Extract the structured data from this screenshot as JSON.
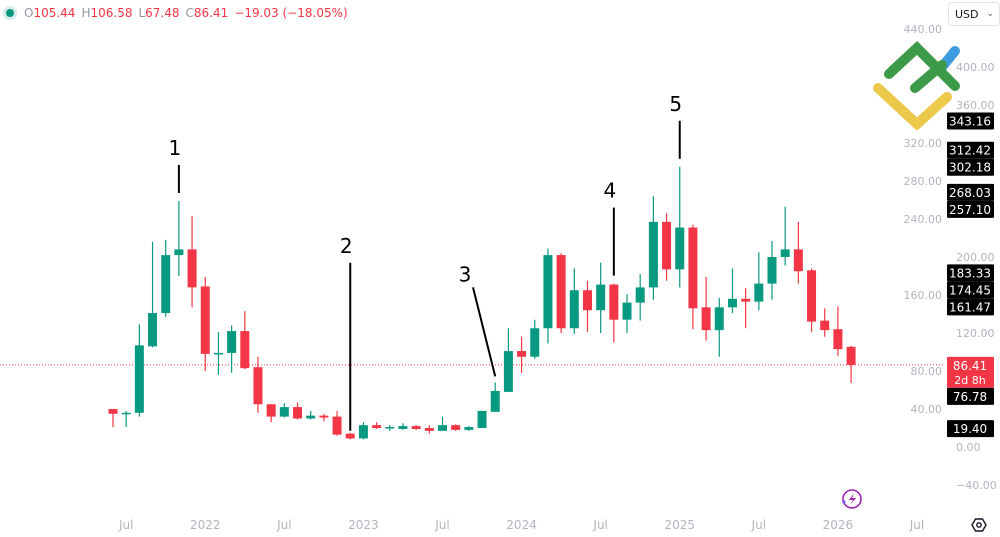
{
  "legend": {
    "o_label": "O",
    "o": "105.44",
    "h_label": "H",
    "h": "106.58",
    "l_label": "L",
    "l": "67.48",
    "c_label": "C",
    "c": "86.41",
    "change": "−19.03 (−18.05%)"
  },
  "currency": {
    "value": "USD"
  },
  "colors": {
    "up": "#089981",
    "down": "#f23645",
    "label_bg": "#000000",
    "last_price_bg": "#f23645"
  },
  "icons": {
    "logo": "litefinance-logo",
    "assistant": "lightning-sparkle-icon",
    "settings": "gear-hex-icon",
    "currency_dropdown": "chevron-down-icon"
  },
  "chart_data": {
    "type": "candlestick",
    "interval": "monthly",
    "ylim": [
      -40,
      440
    ],
    "y_ticks": [
      "440.00",
      "400.00",
      "360.00",
      "320.00",
      "280.00",
      "240.00",
      "200.00",
      "160.00",
      "120.00",
      "80.00",
      "40.00",
      "0.00",
      "−40.00"
    ],
    "x_ticks": [
      "Jul",
      "2022",
      "Jul",
      "2023",
      "Jul",
      "2024",
      "Jul",
      "2025",
      "Jul",
      "2026",
      "Jul"
    ],
    "candles": [
      [
        "2021-06",
        40,
        40,
        21,
        35
      ],
      [
        "2021-07",
        35,
        38,
        21,
        36
      ],
      [
        "2021-08",
        36,
        129,
        32,
        107
      ],
      [
        "2021-09",
        106,
        216,
        105,
        141
      ],
      [
        "2021-10",
        141,
        218,
        137,
        202
      ],
      [
        "2021-11",
        202,
        259,
        180,
        208
      ],
      [
        "2021-12",
        208,
        243,
        147,
        168
      ],
      [
        "2022-01",
        169,
        179,
        80,
        98
      ],
      [
        "2022-02",
        98,
        121,
        76,
        99
      ],
      [
        "2022-03",
        99,
        128,
        78,
        122
      ],
      [
        "2022-04",
        122,
        143,
        82,
        83
      ],
      [
        "2022-05",
        84,
        95,
        36,
        45
      ],
      [
        "2022-06",
        45,
        45,
        26,
        32
      ],
      [
        "2022-07",
        32,
        46,
        31,
        42
      ],
      [
        "2022-08",
        42,
        47,
        29,
        30
      ],
      [
        "2022-09",
        30,
        38,
        29,
        33
      ],
      [
        "2022-10",
        33,
        35,
        27,
        31
      ],
      [
        "2022-11",
        32,
        38,
        12,
        13
      ],
      [
        "2022-12",
        14,
        15,
        8,
        9
      ],
      [
        "2023-01",
        9,
        26,
        8,
        23
      ],
      [
        "2023-02",
        23,
        26,
        19,
        20
      ],
      [
        "2023-03",
        20,
        23,
        17,
        21
      ],
      [
        "2023-04",
        19,
        25,
        18,
        22
      ],
      [
        "2023-05",
        22,
        23,
        18,
        19
      ],
      [
        "2023-06",
        20,
        23,
        14,
        17
      ],
      [
        "2023-07",
        17,
        32,
        17,
        23
      ],
      [
        "2023-08",
        23,
        24,
        17,
        18
      ],
      [
        "2023-09",
        18,
        22,
        17,
        21
      ],
      [
        "2023-10",
        20,
        38,
        20,
        38
      ],
      [
        "2023-11",
        37,
        68,
        37,
        59
      ],
      [
        "2023-12",
        58,
        125,
        58,
        101
      ],
      [
        "2024-01",
        101,
        116,
        78,
        95
      ],
      [
        "2024-02",
        95,
        134,
        93,
        125
      ],
      [
        "2024-03",
        125,
        209,
        109,
        202
      ],
      [
        "2024-04",
        202,
        204,
        120,
        125
      ],
      [
        "2024-05",
        125,
        188,
        119,
        165
      ],
      [
        "2024-06",
        165,
        175,
        121,
        144
      ],
      [
        "2024-07",
        144,
        194,
        120,
        171
      ],
      [
        "2024-08",
        171,
        172,
        110,
        134
      ],
      [
        "2024-09",
        134,
        161,
        120,
        152
      ],
      [
        "2024-10",
        152,
        182,
        133,
        168
      ],
      [
        "2024-11",
        168,
        264,
        155,
        237
      ],
      [
        "2024-12",
        237,
        246,
        175,
        187
      ],
      [
        "2025-01",
        187,
        295,
        168,
        231
      ],
      [
        "2025-02",
        231,
        234,
        124,
        146
      ],
      [
        "2025-03",
        147,
        179,
        112,
        123
      ],
      [
        "2025-04",
        123,
        157,
        95,
        147
      ],
      [
        "2025-05",
        147,
        188,
        141,
        156
      ],
      [
        "2025-06",
        156,
        167,
        125,
        153
      ],
      [
        "2025-07",
        153,
        205,
        144,
        172
      ],
      [
        "2025-08",
        172,
        217,
        155,
        200
      ],
      [
        "2025-09",
        200,
        253,
        191,
        208
      ],
      [
        "2025-10",
        208,
        237,
        172,
        185
      ],
      [
        "2025-11",
        186,
        188,
        121,
        132
      ],
      [
        "2025-12",
        133,
        146,
        116,
        123
      ],
      [
        "2026-01",
        124,
        148,
        96,
        103
      ],
      [
        "2026-02",
        105.44,
        106.58,
        67.48,
        86.41
      ]
    ],
    "last_price": {
      "value": "86.41",
      "countdown": "2d 8h"
    },
    "price_labels": [
      "343.16",
      "312.42",
      "302.18",
      "268.03",
      "257.10",
      "183.33",
      "174.45",
      "161.47",
      "76.78",
      "19.40"
    ],
    "annotations": [
      {
        "text": "1",
        "date": "2021-11"
      },
      {
        "text": "2",
        "date": "2022-12"
      },
      {
        "text": "3",
        "date": "2023-11"
      },
      {
        "text": "4",
        "date": "2024-08"
      },
      {
        "text": "5",
        "date": "2025-01"
      }
    ]
  }
}
